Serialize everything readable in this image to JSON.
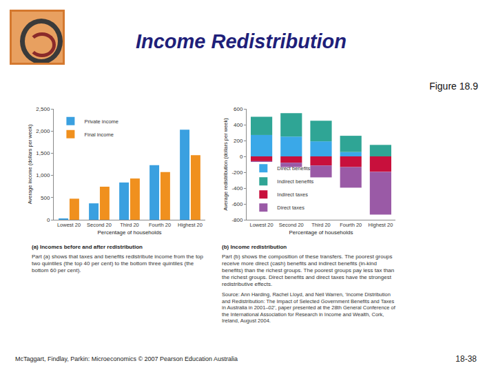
{
  "slide": {
    "title": "Income Redistribution",
    "figure_label": "Figure 18.9",
    "footer": "McTaggart, Findlay, Parkin: Microeconomics © 2007 Pearson Education Australia",
    "page": "18-38"
  },
  "chart_data": [
    {
      "type": "bar",
      "title": "(a) Incomes before and after redistribution",
      "x_label": "Percentage of households",
      "y_label": "Average income (dollars per week)",
      "categories": [
        "Lowest 20",
        "Second 20",
        "Third 20",
        "Fourth 20",
        "Highest 20"
      ],
      "series": [
        {
          "name": "Private income",
          "color": "#3aa0e0",
          "values": [
            30,
            370,
            840,
            1230,
            2030
          ]
        },
        {
          "name": "Final income",
          "color": "#f0901e",
          "values": [
            475,
            745,
            930,
            1075,
            1455
          ]
        }
      ],
      "ylim": [
        0,
        2500
      ],
      "yticks": [
        0,
        500,
        {
          "value": 1000,
          "label": "1,000"
        },
        {
          "value": 1500,
          "label": "1,500"
        },
        {
          "value": 2000,
          "label": "2,000"
        },
        {
          "value": 2500,
          "label": "2,500"
        }
      ],
      "legend": "top left",
      "grid": false,
      "stacked": false,
      "annotations": [
        "Part (a) shows that taxes and benefits redistribute income from the top two quintiles (the top 40 per cent) to the bottom three quintiles (the bottom 60 per cent)."
      ]
    },
    {
      "type": "bar",
      "title": "(b) Income redistribution",
      "x_label": "Percentage of households",
      "y_label": "Average redistribution (dollars per week)",
      "categories": [
        "Lowest 20",
        "Second 20",
        "Third 20",
        "Fourth 20",
        "Highest 20"
      ],
      "series": [
        {
          "name": "Direct benefits",
          "color": "#3aa8e8",
          "values": [
            270,
            250,
            190,
            55,
            0
          ]
        },
        {
          "name": "Indirect benefits",
          "color": "#2fa595",
          "values": [
            230,
            295,
            260,
            205,
            145
          ]
        },
        {
          "name": "Indirect taxes",
          "color": "#c8103c",
          "values": [
            -60,
            -80,
            -115,
            -135,
            -195
          ]
        },
        {
          "name": "Direct taxes",
          "color": "#9a5aa6",
          "values": [
            -10,
            -55,
            -150,
            -260,
            -540
          ]
        }
      ],
      "ylim": [
        -800,
        600
      ],
      "yticks": [
        -800,
        -600,
        -400,
        -200,
        0,
        200,
        400,
        600
      ],
      "legend": "bottom left",
      "grid": false,
      "stacked": true,
      "annotations": [
        "Part (b) shows the composition of these transfers. The poorest groups receive more direct (cash) benefits and indirect benefits (in-kind benefits) than the richest groups. The poorest groups pay less tax than the richest groups. Direct benefits and direct taxes have the strongest redistributive effects.",
        "Source: Ann Harding, Rachel Lloyd, and Neil Warren, ‘Income Distribution and Redistribution: The Impact of Selected Government Benefits and Taxes in Australia in 2001–02’, paper presented at the 28th General Conference of the International Association for Research in Income and Wealth, Cork, Ireland, August 2004."
      ]
    }
  ]
}
